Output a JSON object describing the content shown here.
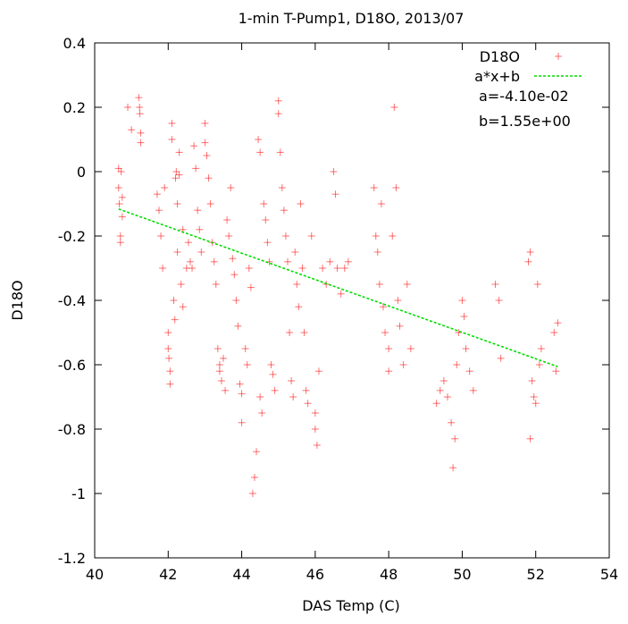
{
  "chart_data": {
    "type": "scatter",
    "title": "1-min T-Pump1, D18O, 2013/07",
    "xlabel": "DAS Temp (C)",
    "ylabel": "D18O",
    "xlim": [
      40,
      54
    ],
    "ylim": [
      -1.2,
      0.4
    ],
    "xticks": [
      "40",
      "42",
      "44",
      "46",
      "48",
      "50",
      "52",
      "54"
    ],
    "yticks": [
      "0.4",
      "0.2",
      "0",
      "-0.2",
      "-0.4",
      "-0.6",
      "-0.8",
      "-1",
      "-1.2"
    ],
    "grid": false,
    "legend_position": "top-right",
    "series": [
      {
        "name": "D18O",
        "marker": "+",
        "color": "#ff0000",
        "points": [
          [
            40.65,
            0.01
          ],
          [
            40.65,
            -0.05
          ],
          [
            40.67,
            -0.1
          ],
          [
            40.7,
            -0.2
          ],
          [
            40.7,
            -0.22
          ],
          [
            40.72,
            0.0
          ],
          [
            40.75,
            -0.08
          ],
          [
            40.75,
            -0.14
          ],
          [
            40.9,
            0.2
          ],
          [
            41.0,
            0.13
          ],
          [
            41.2,
            0.23
          ],
          [
            41.22,
            0.2
          ],
          [
            41.23,
            0.18
          ],
          [
            41.25,
            0.12
          ],
          [
            41.25,
            0.09
          ],
          [
            41.7,
            -0.07
          ],
          [
            41.75,
            -0.12
          ],
          [
            41.8,
            -0.2
          ],
          [
            41.85,
            -0.3
          ],
          [
            41.9,
            -0.05
          ],
          [
            42.0,
            -0.5
          ],
          [
            42.0,
            -0.55
          ],
          [
            42.02,
            -0.58
          ],
          [
            42.05,
            -0.62
          ],
          [
            42.05,
            -0.66
          ],
          [
            42.1,
            0.15
          ],
          [
            42.1,
            0.1
          ],
          [
            42.15,
            -0.4
          ],
          [
            42.18,
            -0.46
          ],
          [
            42.2,
            -0.02
          ],
          [
            42.22,
            0.0
          ],
          [
            42.25,
            -0.1
          ],
          [
            42.25,
            -0.25
          ],
          [
            42.3,
            0.06
          ],
          [
            42.3,
            -0.01
          ],
          [
            42.35,
            -0.35
          ],
          [
            42.4,
            -0.18
          ],
          [
            42.4,
            -0.42
          ],
          [
            42.5,
            -0.3
          ],
          [
            42.55,
            -0.22
          ],
          [
            42.6,
            -0.28
          ],
          [
            42.65,
            -0.3
          ],
          [
            42.7,
            0.08
          ],
          [
            42.75,
            0.01
          ],
          [
            42.8,
            -0.12
          ],
          [
            42.85,
            -0.18
          ],
          [
            42.9,
            -0.25
          ],
          [
            43.0,
            0.15
          ],
          [
            43.0,
            0.09
          ],
          [
            43.05,
            0.05
          ],
          [
            43.1,
            -0.02
          ],
          [
            43.15,
            -0.1
          ],
          [
            43.2,
            -0.22
          ],
          [
            43.25,
            -0.28
          ],
          [
            43.3,
            -0.35
          ],
          [
            43.35,
            -0.55
          ],
          [
            43.4,
            -0.6
          ],
          [
            43.4,
            -0.62
          ],
          [
            43.45,
            -0.65
          ],
          [
            43.5,
            -0.58
          ],
          [
            43.55,
            -0.68
          ],
          [
            43.6,
            -0.15
          ],
          [
            43.65,
            -0.2
          ],
          [
            43.7,
            -0.05
          ],
          [
            43.75,
            -0.27
          ],
          [
            43.8,
            -0.32
          ],
          [
            43.85,
            -0.4
          ],
          [
            43.9,
            -0.48
          ],
          [
            43.95,
            -0.66
          ],
          [
            44.0,
            -0.69
          ],
          [
            44.0,
            -0.78
          ],
          [
            44.1,
            -0.55
          ],
          [
            44.15,
            -0.6
          ],
          [
            44.2,
            -0.3
          ],
          [
            44.25,
            -0.36
          ],
          [
            44.3,
            -1.0
          ],
          [
            44.35,
            -0.95
          ],
          [
            44.4,
            -0.87
          ],
          [
            44.45,
            0.1
          ],
          [
            44.5,
            0.06
          ],
          [
            44.5,
            -0.7
          ],
          [
            44.55,
            -0.75
          ],
          [
            44.6,
            -0.1
          ],
          [
            44.65,
            -0.15
          ],
          [
            44.7,
            -0.22
          ],
          [
            44.75,
            -0.28
          ],
          [
            44.8,
            -0.6
          ],
          [
            44.85,
            -0.63
          ],
          [
            44.9,
            -0.68
          ],
          [
            45.0,
            0.22
          ],
          [
            45.0,
            0.18
          ],
          [
            45.05,
            0.06
          ],
          [
            45.1,
            -0.05
          ],
          [
            45.15,
            -0.12
          ],
          [
            45.2,
            -0.2
          ],
          [
            45.25,
            -0.28
          ],
          [
            45.3,
            -0.5
          ],
          [
            45.35,
            -0.65
          ],
          [
            45.4,
            -0.7
          ],
          [
            45.45,
            -0.25
          ],
          [
            45.5,
            -0.35
          ],
          [
            45.55,
            -0.42
          ],
          [
            45.6,
            -0.1
          ],
          [
            45.65,
            -0.3
          ],
          [
            45.7,
            -0.5
          ],
          [
            45.75,
            -0.68
          ],
          [
            45.8,
            -0.72
          ],
          [
            45.9,
            -0.2
          ],
          [
            46.0,
            -0.75
          ],
          [
            46.0,
            -0.8
          ],
          [
            46.05,
            -0.85
          ],
          [
            46.1,
            -0.62
          ],
          [
            46.2,
            -0.3
          ],
          [
            46.3,
            -0.35
          ],
          [
            46.4,
            -0.28
          ],
          [
            46.5,
            0.0
          ],
          [
            46.55,
            -0.07
          ],
          [
            46.6,
            -0.3
          ],
          [
            46.7,
            -0.38
          ],
          [
            46.8,
            -0.3
          ],
          [
            46.9,
            -0.28
          ],
          [
            47.6,
            -0.05
          ],
          [
            47.65,
            -0.2
          ],
          [
            47.7,
            -0.25
          ],
          [
            47.75,
            -0.35
          ],
          [
            47.8,
            -0.1
          ],
          [
            47.85,
            -0.42
          ],
          [
            47.9,
            -0.5
          ],
          [
            48.0,
            -0.55
          ],
          [
            48.0,
            -0.62
          ],
          [
            48.1,
            -0.2
          ],
          [
            48.15,
            0.2
          ],
          [
            48.2,
            -0.05
          ],
          [
            48.25,
            -0.4
          ],
          [
            48.3,
            -0.48
          ],
          [
            48.4,
            -0.6
          ],
          [
            48.5,
            -0.35
          ],
          [
            48.6,
            -0.55
          ],
          [
            49.3,
            -0.72
          ],
          [
            49.4,
            -0.68
          ],
          [
            49.5,
            -0.65
          ],
          [
            49.6,
            -0.7
          ],
          [
            49.7,
            -0.78
          ],
          [
            49.75,
            -0.92
          ],
          [
            49.8,
            -0.83
          ],
          [
            49.85,
            -0.6
          ],
          [
            49.9,
            -0.5
          ],
          [
            50.0,
            -0.4
          ],
          [
            50.05,
            -0.45
          ],
          [
            50.1,
            -0.55
          ],
          [
            50.2,
            -0.62
          ],
          [
            50.3,
            -0.68
          ],
          [
            50.9,
            -0.35
          ],
          [
            51.0,
            -0.4
          ],
          [
            51.05,
            -0.58
          ],
          [
            51.8,
            -0.28
          ],
          [
            51.85,
            -0.25
          ],
          [
            51.85,
            -0.83
          ],
          [
            51.9,
            -0.65
          ],
          [
            51.95,
            -0.7
          ],
          [
            52.0,
            -0.72
          ],
          [
            52.05,
            -0.35
          ],
          [
            52.1,
            -0.6
          ],
          [
            52.15,
            -0.55
          ],
          [
            52.5,
            -0.5
          ],
          [
            52.55,
            -0.62
          ],
          [
            52.6,
            -0.47
          ]
        ]
      },
      {
        "name": "a*x+b",
        "type": "line",
        "color": "#00dd00",
        "x": [
          40.65,
          52.6
        ],
        "y": [
          -0.116,
          -0.606
        ]
      }
    ],
    "annotations": [
      "a=-4.10e-02",
      "b=1.55e+00"
    ]
  }
}
